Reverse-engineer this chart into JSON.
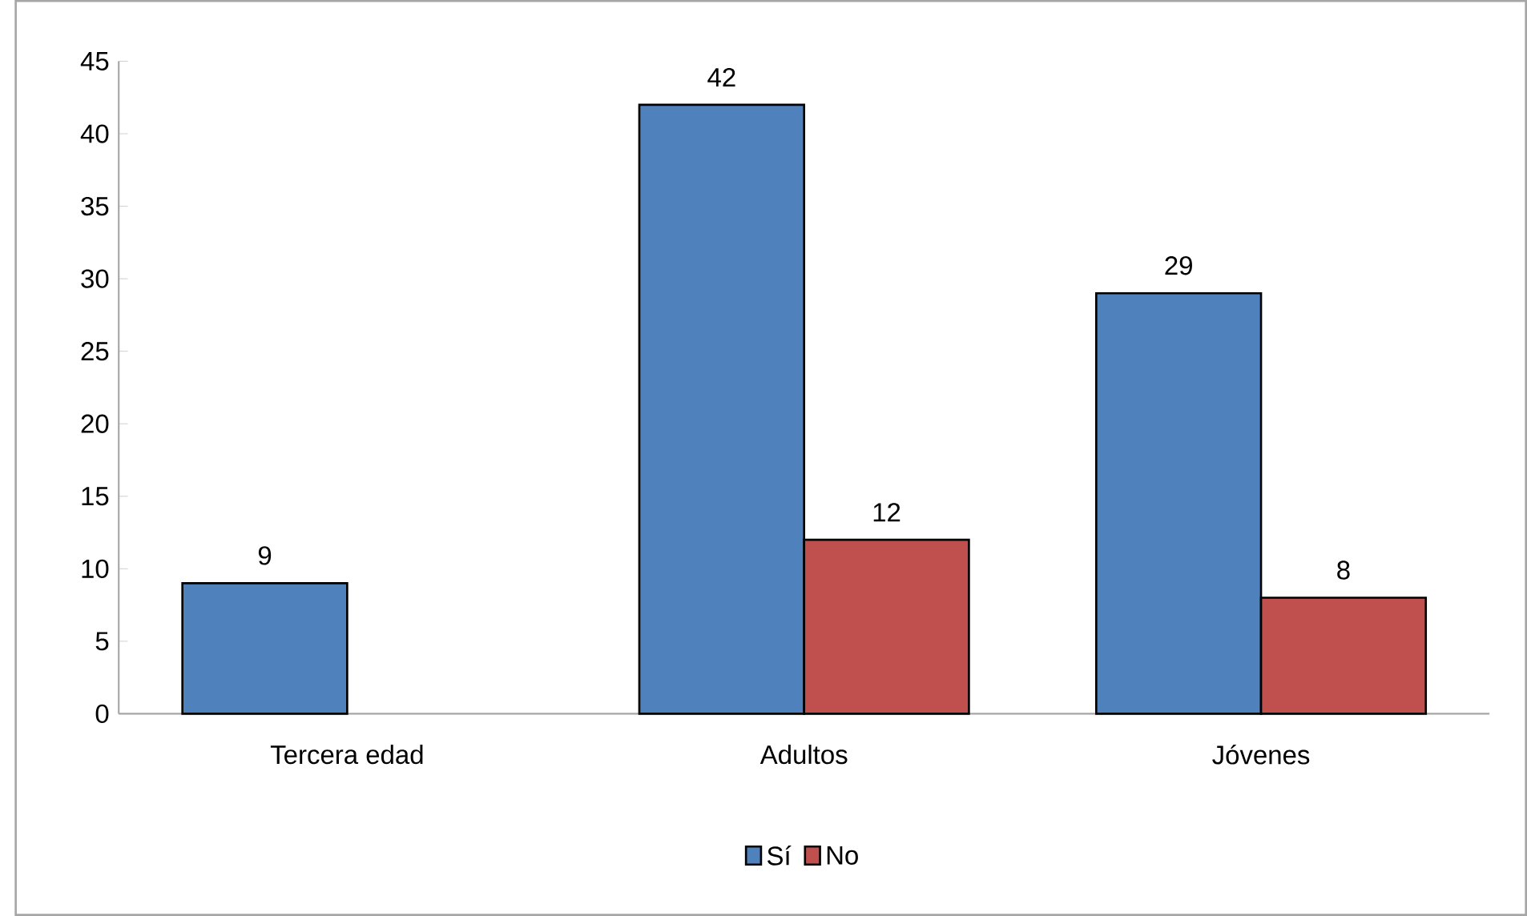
{
  "chart_data": {
    "type": "bar",
    "categories": [
      "Tercera edad",
      "Adultos",
      "Jóvenes"
    ],
    "series": [
      {
        "name": "Sí",
        "color": "#4f81bd",
        "values": [
          9,
          42,
          29
        ]
      },
      {
        "name": "No",
        "color": "#c0504d",
        "values": [
          null,
          12,
          8
        ]
      }
    ],
    "ylim": [
      0,
      45
    ],
    "yticks": [
      0,
      5,
      10,
      15,
      20,
      25,
      30,
      35,
      40,
      45
    ],
    "data_labels": true,
    "grid": false,
    "legend": "bottom"
  }
}
